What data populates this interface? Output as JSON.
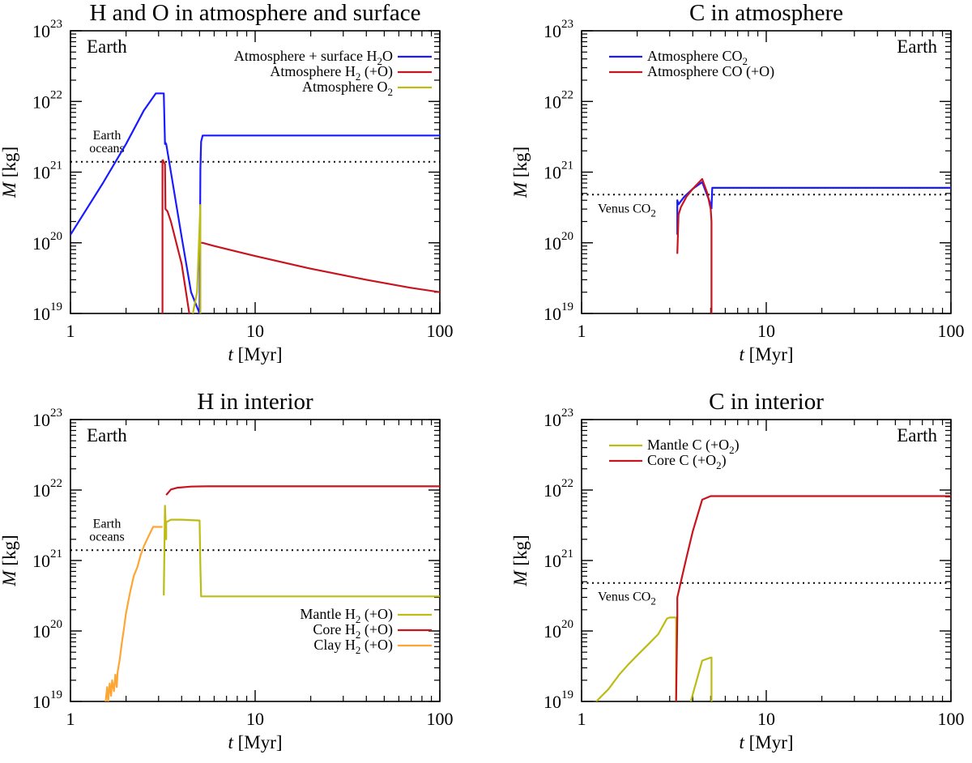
{
  "colors": {
    "blue": "#1a1aff",
    "red": "#c8141e",
    "olive": "#bcbc14",
    "orange": "#ffa533",
    "black": "#000000"
  },
  "chart_data": [
    {
      "type": "line",
      "title": "H and O in atmosphere and surface",
      "xlabel": "t [Myr]",
      "ylabel": "M [kg]",
      "xscale": "log",
      "yscale": "log",
      "xlim": [
        1,
        100
      ],
      "ylim": [
        1e+19,
        1e+23
      ],
      "planet_label": "Earth",
      "planet_label_pos": "top-left",
      "legend_pos": "top-right",
      "reference": {
        "label_lines": [
          "Earth",
          "oceans"
        ],
        "value": 1.4e+21
      },
      "series": [
        {
          "name": "Atmosphere + surface H2O",
          "name_main": "Atmosphere + surface H",
          "name_sub": "2",
          "name_post": "O",
          "color": "blue",
          "x": [
            1,
            1.5,
            2,
            2.5,
            2.9,
            3.0,
            3.2,
            3.25,
            3.27,
            3.3,
            3.5,
            4.0,
            4.5,
            5.0,
            5.05,
            5.1,
            5.2,
            5.3,
            10,
            30,
            100
          ],
          "y": [
            1.3e+20,
            7e+20,
            2.5e+21,
            7.5e+21,
            1.3e+22,
            1.3e+22,
            1.3e+22,
            2.5e+21,
            2.6e+21,
            2.5e+21,
            1e+21,
            1.2e+20,
            2e+19,
            1e+19,
            1.1e+21,
            2.7e+21,
            3.3e+21,
            3.3e+21,
            3.3e+21,
            3.3e+21,
            3.3e+21
          ]
        },
        {
          "name": "Atmosphere H2 (+O)",
          "name_main": "Atmosphere H",
          "name_sub": "2",
          "name_post": " (+O)",
          "color": "red",
          "segments": [
            {
              "x": [
                3.15,
                3.15
              ],
              "y": [
                1e+19,
                1.5e+21
              ]
            },
            {
              "x": [
                3.15,
                3.25,
                3.27,
                3.35,
                3.5,
                4.0,
                4.4
              ],
              "y": [
                1.5e+21,
                1.3e+21,
                3e+20,
                2.8e+20,
                2e+20,
                5e+19,
                1e+19
              ]
            },
            {
              "x": [
                5.1,
                5.2,
                6,
                8,
                10,
                20,
                40,
                70,
                100
              ],
              "y": [
                1e+20,
                1e+20,
                9e+19,
                7.5e+19,
                6.5e+19,
                4.3e+19,
                3e+19,
                2.3e+19,
                2e+19
              ]
            }
          ]
        },
        {
          "name": "Atmosphere O2",
          "name_main": "Atmosphere O",
          "name_sub": "2",
          "name_post": "",
          "color": "olive",
          "segments": [
            {
              "x": [
                4.6,
                4.85,
                5.05
              ],
              "y": [
                1e+19,
                2e+19,
                3.5e+20
              ]
            },
            {
              "x": [
                5.05,
                5.05
              ],
              "y": [
                3.5e+20,
                1e+19
              ]
            }
          ]
        }
      ]
    },
    {
      "type": "line",
      "title": "C in atmosphere",
      "xlabel": "t [Myr]",
      "ylabel": "M [kg]",
      "xscale": "log",
      "yscale": "log",
      "xlim": [
        1,
        100
      ],
      "ylim": [
        1e+19,
        1e+23
      ],
      "planet_label": "Earth",
      "planet_label_pos": "top-right",
      "legend_pos": "top-left",
      "reference": {
        "label_lines": [
          "Venus CO2"
        ],
        "label_main": "Venus CO",
        "label_sub": "2",
        "value": 4.8e+20
      },
      "series": [
        {
          "name": "Atmosphere CO2",
          "name_main": "Atmosphere CO",
          "name_sub": "2",
          "name_post": "",
          "color": "blue",
          "segments": [
            {
              "x": [
                3.3,
                3.3,
                3.35,
                3.4,
                3.6,
                4.0,
                4.5,
                5.0,
                5.05
              ],
              "y": [
                1.3e+20,
                4e+20,
                3.5e+20,
                3.7e+20,
                4.5e+20,
                5.8e+20,
                7.2e+20,
                3.5e+20,
                3e+20
              ]
            },
            {
              "x": [
                5.05,
                5.1,
                12,
                100
              ],
              "y": [
                3e+20,
                6e+20,
                6e+20,
                6e+20
              ]
            }
          ]
        },
        {
          "name": "Atmosphere CO (+O)",
          "name_main": "Atmosphere CO (+O)",
          "name_sub": "",
          "name_post": "",
          "color": "red",
          "segments": [
            {
              "x": [
                3.3,
                3.35,
                3.45,
                3.7,
                4.0,
                4.5,
                4.8,
                5.0,
                5.05,
                5.05
              ],
              "y": [
                7e+19,
                2.5e+20,
                3.2e+20,
                4.5e+20,
                5.8e+20,
                8e+20,
                5e+20,
                3e+20,
                2e+20,
                1e+19
              ]
            }
          ]
        }
      ]
    },
    {
      "type": "line",
      "title": "H in interior",
      "xlabel": "t [Myr]",
      "ylabel": "M [kg]",
      "xscale": "log",
      "yscale": "log",
      "xlim": [
        1,
        100
      ],
      "ylim": [
        1e+19,
        1e+23
      ],
      "planet_label": "Earth",
      "planet_label_pos": "top-left",
      "legend_pos": "bottom-right",
      "reference": {
        "label_lines": [
          "Earth",
          "oceans"
        ],
        "value": 1.4e+21
      },
      "series": [
        {
          "name": "Mantle H2 (+O)",
          "name_main": "Mantle H",
          "name_sub": "2",
          "name_post": " (+O)",
          "color": "olive",
          "segments": [
            {
              "x": [
                3.2,
                3.25,
                3.3,
                3.3,
                3.5,
                4.0,
                5.0,
                5.05,
                5.1,
                10,
                100
              ],
              "y": [
                3.2e+20,
                6e+21,
                2e+21,
                3.5e+21,
                3.8e+21,
                3.8e+21,
                3.7e+21,
                8e+20,
                3.1e+20,
                3.1e+20,
                3.1e+20
              ]
            }
          ]
        },
        {
          "name": "Core H2 (+O)",
          "name_main": "Core H",
          "name_sub": "2",
          "name_post": " (+O)",
          "color": "red",
          "segments": [
            {
              "x": [
                3.3,
                3.5,
                3.8,
                4.5,
                5.5,
                10,
                100
              ],
              "y": [
                8.5e+21,
                1.02e+22,
                1.08e+22,
                1.12e+22,
                1.13e+22,
                1.13e+22,
                1.13e+22
              ]
            }
          ]
        },
        {
          "name": "Clay H2 (+O)",
          "name_main": "Clay H",
          "name_sub": "2",
          "name_post": " (+O)",
          "color": "orange",
          "segments": [
            {
              "x": [
                1.55,
                1.58,
                1.6,
                1.63,
                1.66,
                1.68,
                1.72,
                1.75,
                1.78,
                1.8,
                1.85,
                1.9,
                1.95,
                2.0,
                2.1,
                2.2,
                2.3,
                2.4,
                2.5,
                2.6,
                2.8,
                3.0,
                3.15
              ],
              "y": [
                1e+19,
                1.6e+19,
                1e+19,
                1.8e+19,
                1.2e+19,
                2e+19,
                1.4e+19,
                2.4e+19,
                1.6e+19,
                2.6e+19,
                4e+19,
                7e+19,
                1.1e+20,
                1.8e+20,
                3.5e+20,
                6e+20,
                8e+20,
                1.2e+21,
                1.6e+21,
                2e+21,
                3e+21,
                3e+21,
                3e+21
              ]
            }
          ]
        }
      ]
    },
    {
      "type": "line",
      "title": "C in interior",
      "xlabel": "t [Myr]",
      "ylabel": "M [kg]",
      "xscale": "log",
      "yscale": "log",
      "xlim": [
        1,
        100
      ],
      "ylim": [
        1e+19,
        1e+23
      ],
      "planet_label": "Earth",
      "planet_label_pos": "top-right",
      "legend_pos": "top-left",
      "reference": {
        "label_lines": [
          "Venus CO2"
        ],
        "label_main": "Venus CO",
        "label_sub": "2",
        "value": 4.8e+20
      },
      "series": [
        {
          "name": "Mantle C (+O2)",
          "name_main": "Mantle C (+O",
          "name_sub": "2",
          "name_post": ")",
          "color": "olive",
          "segments": [
            {
              "x": [
                1.2,
                1.4,
                1.6,
                1.8,
                2.0,
                2.3,
                2.6,
                2.9,
                3.0,
                3.25,
                3.25
              ],
              "y": [
                1e+19,
                1.5e+19,
                2.4e+19,
                3.4e+19,
                4.5e+19,
                6.5e+19,
                9e+19,
                1.5e+20,
                1.55e+20,
                1.55e+20,
                1e+19
              ]
            },
            {
              "x": [
                3.9,
                4.5,
                5.0,
                5.05,
                5.05
              ],
              "y": [
                1e+19,
                3.8e+19,
                4.2e+19,
                4.2e+19,
                1e+19
              ]
            }
          ]
        },
        {
          "name": "Core C (+O2)",
          "name_main": "Core C (+O",
          "name_sub": "2",
          "name_post": ")",
          "color": "red",
          "segments": [
            {
              "x": [
                3.25,
                3.3,
                3.3,
                3.45,
                3.7,
                4.0,
                4.5,
                5.0,
                10,
                100
              ],
              "y": [
                1e+19,
                1.6e+20,
                3e+20,
                5e+20,
                1.1e+21,
                2.6e+21,
                7.3e+21,
                8.2e+21,
                8.2e+21,
                8.2e+21
              ]
            }
          ]
        }
      ]
    }
  ]
}
